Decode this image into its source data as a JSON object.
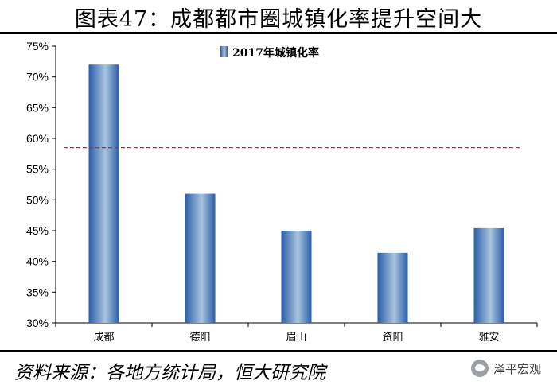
{
  "header": {
    "title": "图表47：成都都市圈城镇化率提升空间大"
  },
  "footer": {
    "source": "资料来源：各地方统计局，恒大研究院",
    "watermark": "泽平宏观"
  },
  "colors": {
    "bar_dark": "#2a5ea8",
    "bar_light": "#a9c4df",
    "reference_line": "#cc2222"
  },
  "chart_data": {
    "type": "bar",
    "categories": [
      "成都",
      "德阳",
      "眉山",
      "资阳",
      "雅安"
    ],
    "series": [
      {
        "name": "2017年城镇化率",
        "values": [
          72.0,
          51.0,
          45.0,
          41.4,
          45.4
        ]
      }
    ],
    "y_tick_labels": [
      "30%",
      "35%",
      "40%",
      "45%",
      "50%",
      "55%",
      "60%",
      "65%",
      "70%",
      "75%"
    ],
    "ylim": [
      30,
      75
    ],
    "y_unit": "%",
    "reference_line": 58.5,
    "legend_position": "top-center",
    "grid": false
  }
}
